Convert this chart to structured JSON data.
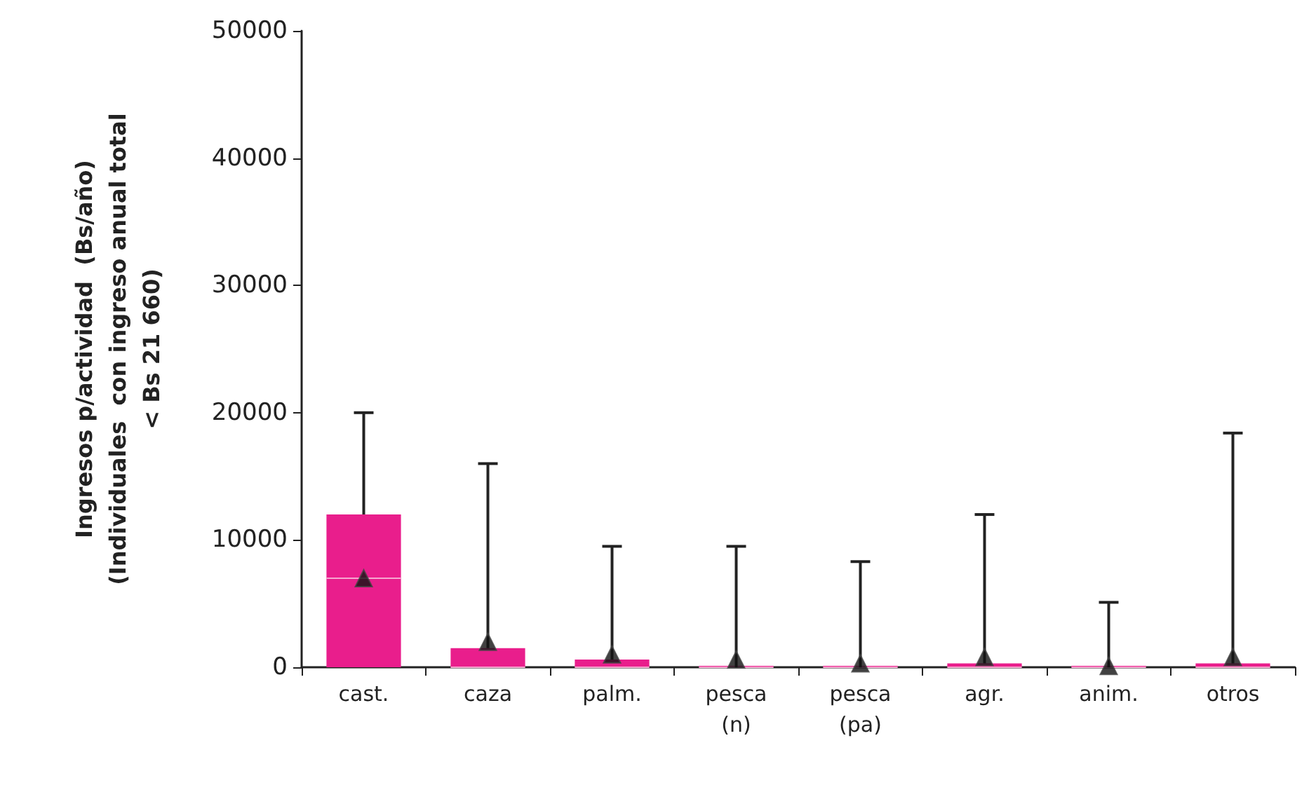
{
  "chart_data": {
    "type": "box",
    "ylabel": "Ingresos p/actividad  (Bs/año)\n(Individuales  con ingreso anual total\n< Bs 21 660)",
    "categories": [
      "cast.",
      "caza",
      "palm.",
      "pesca (n)",
      "pesca (pa)",
      "agr.",
      "anim.",
      "otros"
    ],
    "boxes": [
      {
        "low": 0,
        "q1": 0,
        "median": 7000,
        "q3": 12000,
        "high": 20000,
        "mean": 7000
      },
      {
        "low": 0,
        "q1": 0,
        "median": 0,
        "q3": 1500,
        "high": 16000,
        "mean": 2000
      },
      {
        "low": 0,
        "q1": 0,
        "median": 0,
        "q3": 600,
        "high": 9500,
        "mean": 1000
      },
      {
        "low": 0,
        "q1": 0,
        "median": 0,
        "q3": 0,
        "high": 9500,
        "mean": 600
      },
      {
        "low": 0,
        "q1": 0,
        "median": 0,
        "q3": 0,
        "high": 8300,
        "mean": 300
      },
      {
        "low": 0,
        "q1": 0,
        "median": 0,
        "q3": 300,
        "high": 12000,
        "mean": 800
      },
      {
        "low": 0,
        "q1": 0,
        "median": 0,
        "q3": 0,
        "high": 5100,
        "mean": 100
      },
      {
        "low": 0,
        "q1": 0,
        "median": 0,
        "q3": 300,
        "high": 18400,
        "mean": 800
      }
    ],
    "color": "#e91e8c",
    "marker": "triangle",
    "grid": false,
    "ylim": [
      0,
      50000
    ],
    "yticks": [
      0,
      10000,
      20000,
      30000,
      40000,
      50000
    ]
  }
}
